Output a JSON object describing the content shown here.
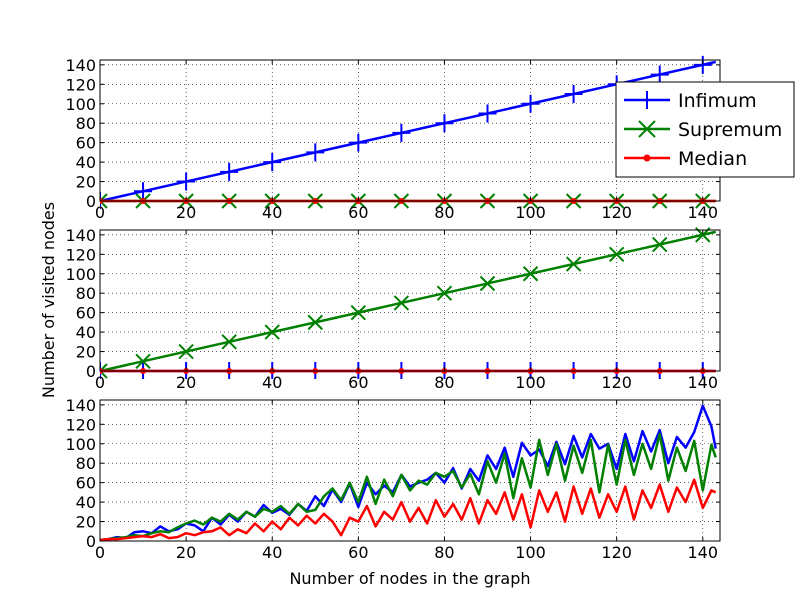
{
  "figure": {
    "ylabel": "Number of visited nodes",
    "xlabel": "Number of nodes in the graph"
  },
  "colors": {
    "infimum": "#0000ff",
    "supremum": "#008000",
    "median": "#ff0000"
  },
  "chart_data": [
    {
      "type": "line",
      "panel": "top",
      "xlim": [
        0,
        144
      ],
      "ylim": [
        0,
        145
      ],
      "xticks": [
        0,
        20,
        40,
        60,
        80,
        100,
        120,
        140
      ],
      "yticks": [
        0,
        20,
        40,
        60,
        80,
        100,
        120,
        140
      ],
      "grid": true,
      "legend": "top-right",
      "series": [
        {
          "name": "Infimum",
          "marker": "plus",
          "x": [
            0,
            143
          ],
          "y": [
            0,
            143
          ],
          "markers_x": [
            0,
            10,
            20,
            30,
            40,
            50,
            60,
            70,
            80,
            90,
            100,
            110,
            120,
            130,
            140
          ]
        },
        {
          "name": "Supremum",
          "marker": "x",
          "x": [
            0,
            143
          ],
          "y": [
            0,
            0
          ],
          "markers_x": [
            0,
            10,
            20,
            30,
            40,
            50,
            60,
            70,
            80,
            90,
            100,
            110,
            120,
            130,
            140
          ]
        },
        {
          "name": "Median",
          "marker": "dot",
          "x": [
            0,
            143
          ],
          "y": [
            0,
            0
          ],
          "markers_x": [
            0,
            10,
            20,
            30,
            40,
            50,
            60,
            70,
            80,
            90,
            100,
            110,
            120,
            130,
            140
          ]
        }
      ]
    },
    {
      "type": "line",
      "panel": "middle",
      "xlim": [
        0,
        144
      ],
      "ylim": [
        0,
        145
      ],
      "xticks": [
        0,
        20,
        40,
        60,
        80,
        100,
        120,
        140
      ],
      "yticks": [
        0,
        20,
        40,
        60,
        80,
        100,
        120,
        140
      ],
      "grid": true,
      "series": [
        {
          "name": "Infimum",
          "marker": "plus",
          "x": [
            0,
            143
          ],
          "y": [
            0,
            0
          ],
          "markers_x": [
            0,
            10,
            20,
            30,
            40,
            50,
            60,
            70,
            80,
            90,
            100,
            110,
            120,
            130,
            140
          ]
        },
        {
          "name": "Supremum",
          "marker": "x",
          "x": [
            0,
            143
          ],
          "y": [
            0,
            143
          ],
          "markers_x": [
            0,
            10,
            20,
            30,
            40,
            50,
            60,
            70,
            80,
            90,
            100,
            110,
            120,
            130,
            140
          ]
        },
        {
          "name": "Median",
          "marker": "dot",
          "x": [
            0,
            143
          ],
          "y": [
            0,
            0
          ],
          "markers_x": [
            0,
            10,
            20,
            30,
            40,
            50,
            60,
            70,
            80,
            90,
            100,
            110,
            120,
            130,
            140
          ]
        }
      ]
    },
    {
      "type": "line",
      "panel": "bottom",
      "xlim": [
        0,
        144
      ],
      "ylim": [
        0,
        145
      ],
      "xticks": [
        0,
        20,
        40,
        60,
        80,
        100,
        120,
        140
      ],
      "yticks": [
        0,
        20,
        40,
        60,
        80,
        100,
        120,
        140
      ],
      "grid": true,
      "series": [
        {
          "name": "Infimum",
          "x": [
            0,
            2,
            4,
            6,
            8,
            10,
            12,
            14,
            16,
            18,
            20,
            22,
            24,
            26,
            28,
            30,
            32,
            34,
            36,
            38,
            40,
            42,
            44,
            46,
            48,
            50,
            52,
            54,
            56,
            58,
            60,
            62,
            64,
            66,
            68,
            70,
            72,
            74,
            76,
            78,
            80,
            82,
            84,
            86,
            88,
            90,
            92,
            94,
            96,
            98,
            100,
            102,
            104,
            106,
            108,
            110,
            112,
            114,
            116,
            118,
            120,
            122,
            124,
            126,
            128,
            130,
            132,
            134,
            136,
            138,
            140,
            142,
            143
          ],
          "y": [
            1,
            2,
            4,
            3,
            9,
            10,
            8,
            15,
            10,
            12,
            18,
            16,
            10,
            24,
            17,
            27,
            20,
            30,
            25,
            37,
            29,
            33,
            27,
            38,
            31,
            46,
            36,
            53,
            40,
            59,
            35,
            60,
            48,
            57,
            50,
            68,
            56,
            60,
            63,
            70,
            60,
            75,
            54,
            74,
            62,
            88,
            74,
            96,
            66,
            101,
            88,
            94,
            77,
            102,
            79,
            108,
            86,
            110,
            95,
            100,
            74,
            110,
            82,
            113,
            92,
            114,
            80,
            107,
            96,
            112,
            139,
            118,
            95
          ]
        },
        {
          "name": "Supremum",
          "x": [
            0,
            2,
            4,
            6,
            8,
            10,
            12,
            14,
            16,
            18,
            20,
            22,
            24,
            26,
            28,
            30,
            32,
            34,
            36,
            38,
            40,
            42,
            44,
            46,
            48,
            50,
            52,
            54,
            56,
            58,
            60,
            62,
            64,
            66,
            68,
            70,
            72,
            74,
            76,
            78,
            80,
            82,
            84,
            86,
            88,
            90,
            92,
            94,
            96,
            98,
            100,
            102,
            104,
            106,
            108,
            110,
            112,
            114,
            116,
            118,
            120,
            122,
            124,
            126,
            128,
            130,
            132,
            134,
            136,
            138,
            140,
            142,
            143
          ],
          "y": [
            1,
            2,
            3,
            4,
            6,
            5,
            8,
            10,
            9,
            14,
            18,
            21,
            17,
            24,
            20,
            28,
            22,
            30,
            25,
            33,
            30,
            36,
            28,
            38,
            30,
            32,
            46,
            54,
            42,
            60,
            40,
            66,
            38,
            63,
            46,
            68,
            52,
            62,
            58,
            70,
            66,
            72,
            55,
            69,
            48,
            82,
            60,
            90,
            44,
            85,
            55,
            104,
            68,
            100,
            62,
            98,
            70,
            104,
            50,
            99,
            58,
            104,
            68,
            100,
            74,
            110,
            62,
            96,
            72,
            103,
            52,
            99,
            86
          ]
        },
        {
          "name": "Median",
          "x": [
            0,
            2,
            4,
            6,
            8,
            10,
            12,
            14,
            16,
            18,
            20,
            22,
            24,
            26,
            28,
            30,
            32,
            34,
            36,
            38,
            40,
            42,
            44,
            46,
            48,
            50,
            52,
            54,
            56,
            58,
            60,
            62,
            64,
            66,
            68,
            70,
            72,
            74,
            76,
            78,
            80,
            82,
            84,
            86,
            88,
            90,
            92,
            94,
            96,
            98,
            100,
            102,
            104,
            106,
            108,
            110,
            112,
            114,
            116,
            118,
            120,
            122,
            124,
            126,
            128,
            130,
            132,
            134,
            136,
            138,
            140,
            142,
            143
          ],
          "y": [
            1,
            2,
            2,
            3,
            4,
            5,
            4,
            7,
            3,
            4,
            8,
            6,
            9,
            10,
            14,
            6,
            12,
            8,
            18,
            10,
            20,
            12,
            24,
            16,
            26,
            18,
            28,
            20,
            6,
            24,
            20,
            36,
            15,
            30,
            22,
            40,
            20,
            34,
            18,
            42,
            25,
            38,
            22,
            44,
            18,
            42,
            28,
            50,
            22,
            48,
            14,
            52,
            30,
            50,
            20,
            56,
            28,
            54,
            24,
            48,
            30,
            56,
            22,
            52,
            34,
            58,
            30,
            55,
            40,
            63,
            34,
            52,
            50
          ]
        }
      ]
    }
  ]
}
